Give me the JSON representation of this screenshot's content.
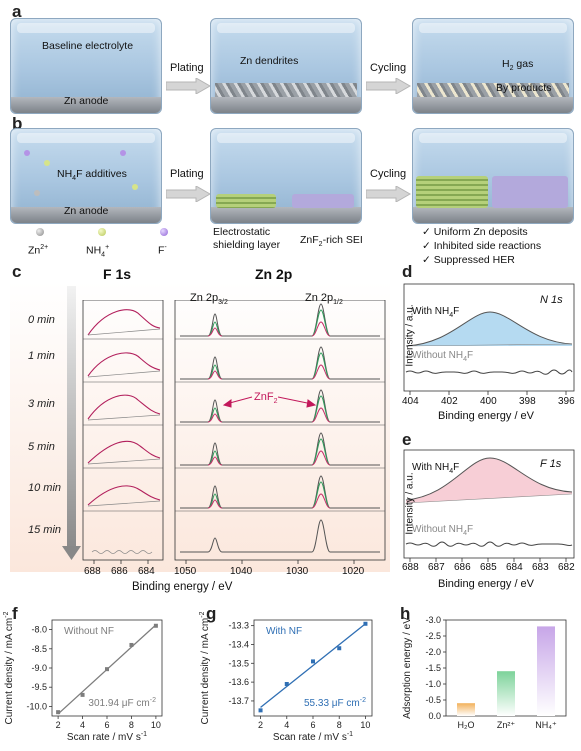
{
  "panels": {
    "a": "a",
    "b": "b",
    "c": "c",
    "d": "d",
    "e": "e",
    "f": "f",
    "g": "g",
    "h": "h"
  },
  "a": {
    "baseline": "Baseline electrolyte",
    "anode": "Zn anode",
    "plating": "Plating",
    "dendrites": "Zn dendrites",
    "cycling": "Cycling",
    "h2_main": "H",
    "h2_sub": "2",
    "h2_rest": " gas",
    "byproducts": "By products"
  },
  "b": {
    "additive_pre": "NH",
    "additive_sub": "4",
    "additive_post": "F additives",
    "anode": "Zn anode",
    "plating": "Plating",
    "cycling": "Cycling",
    "shield_1": "Electrostatic",
    "shield_2": "shielding layer",
    "sei_pre": "ZnF",
    "sei_sub": "2",
    "sei_post": "-rich SEI",
    "bullet_1": "✓  Uniform Zn deposits",
    "bullet_2": "✓  Inhibited side reactions",
    "bullet_3": "✓  Suppressed HER",
    "legend_zn": "Zn",
    "legend_zn_sup": "2+",
    "legend_nh4": "NH",
    "legend_nh4_sub": "4",
    "legend_nh4_sup": "+",
    "legend_f": "F",
    "legend_f_sup": "-"
  },
  "c": {
    "title_f1s": "F 1s",
    "title_zn2p": "Zn 2p",
    "zn32": "Zn 2p",
    "zn32_sub": "3/2",
    "zn12": "Zn 2p",
    "zn12_sub": "1/2",
    "znf2": "ZnF",
    "znf2_sub": "2",
    "times": [
      "0 min",
      "1 min",
      "3 min",
      "5 min",
      "10 min",
      "15 min"
    ],
    "xlabel": "Binding energy / eV",
    "f1s_ticks": [
      "688",
      "686",
      "684"
    ],
    "zn_ticks": [
      "1050",
      "1040",
      "1030",
      "1020"
    ]
  },
  "d": {
    "label": "N 1s",
    "with": "With NH",
    "with_sub": "4",
    "with_post": "F",
    "without": "Without NH",
    "without_sub": "4",
    "without_post": "F",
    "ylabel": "Intensity / a.u.",
    "xlabel": "Binding energy / eV",
    "ticks": [
      "404",
      "402",
      "400",
      "398",
      "396"
    ]
  },
  "e": {
    "label": "F 1s",
    "with": "With NH",
    "with_sub": "4",
    "with_post": "F",
    "without": "Without NH",
    "without_sub": "4",
    "without_post": "F",
    "ylabel": "Intensity / a.u.",
    "xlabel": "Binding energy / eV",
    "ticks": [
      "688",
      "687",
      "686",
      "685",
      "684",
      "683",
      "682"
    ]
  },
  "chart_data": [
    {
      "type": "scatter",
      "panel": "f",
      "legend": "Without NF",
      "annotation": "301.94 μF cm",
      "annotation_sup": "-2",
      "xlabel": "Scan rate / mV s",
      "xlabel_sup": "-1",
      "ylabel": "Current density / mA cm",
      "ylabel_sup": "-2",
      "x": [
        2,
        4,
        6,
        8,
        10
      ],
      "y": [
        -10.15,
        -9.7,
        -9.03,
        -8.4,
        -7.9
      ],
      "xlim": [
        1.5,
        10.5
      ],
      "ylim": [
        -10.25,
        -7.75
      ],
      "xticks": [
        "2",
        "4",
        "6",
        "8",
        "10"
      ],
      "yticks": [
        "-8.0",
        "-8.5",
        "-9.0",
        "-9.5",
        "-10.0"
      ],
      "color": "#7d7d7d"
    },
    {
      "type": "scatter",
      "panel": "g",
      "legend": "With NF",
      "annotation": "55.33 μF cm",
      "annotation_sup": "-2",
      "xlabel": "Scan rate / mV s",
      "xlabel_sup": "-1",
      "ylabel": "Current density / mA cm",
      "ylabel_sup": "-2",
      "x": [
        2,
        4,
        6,
        8,
        10
      ],
      "y": [
        -13.75,
        -13.61,
        -13.49,
        -13.42,
        -13.29
      ],
      "xlim": [
        1.5,
        10.5
      ],
      "ylim": [
        -13.78,
        -13.27
      ],
      "xticks": [
        "2",
        "4",
        "6",
        "8",
        "10"
      ],
      "yticks": [
        "-13.3",
        "-13.4",
        "-13.5",
        "-13.6",
        "-13.7"
      ],
      "color": "#2f6fb4"
    },
    {
      "type": "bar",
      "panel": "h",
      "ylabel": "Adsorption energy / eV",
      "categories": [
        "H₂O",
        "Zn²⁺",
        "NH₄⁺"
      ],
      "values": [
        -0.4,
        -1.4,
        -2.8
      ],
      "ylim": [
        0,
        -3.0
      ],
      "yticks": [
        "-3.0",
        "-2.5",
        "-2.0",
        "-1.5",
        "-1.0",
        "-0.5",
        "0.0"
      ],
      "colors": [
        "#f2b15a",
        "#7dd39a",
        "#c7a6e8"
      ]
    }
  ]
}
